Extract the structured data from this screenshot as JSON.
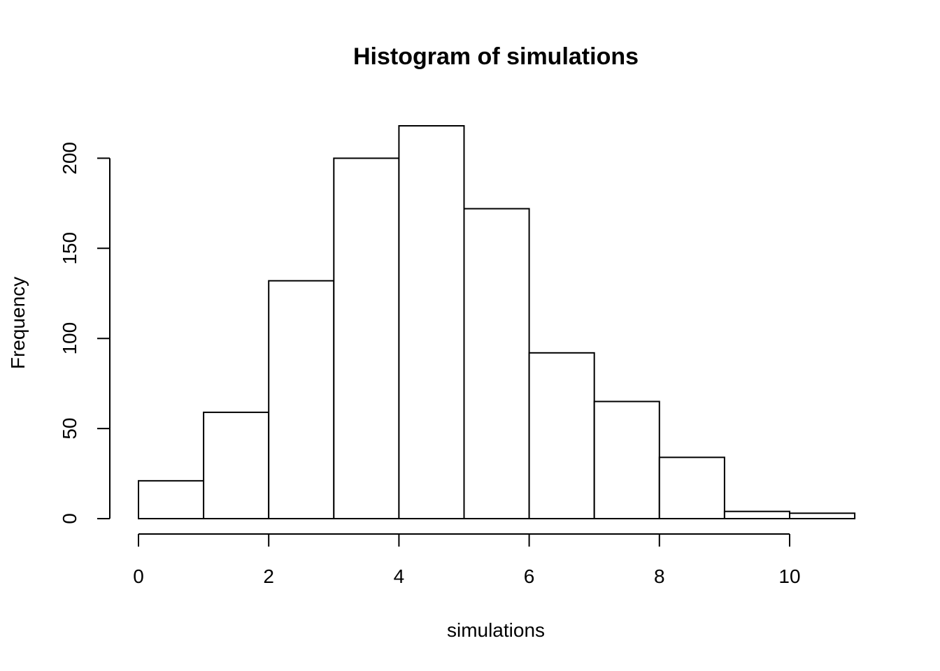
{
  "chart_data": {
    "type": "bar",
    "title": "Histogram of simulations",
    "xlabel": "simulations",
    "ylabel": "Frequency",
    "bins": [
      {
        "x0": 0,
        "x1": 1,
        "count": 21
      },
      {
        "x0": 1,
        "x1": 2,
        "count": 59
      },
      {
        "x0": 2,
        "x1": 3,
        "count": 132
      },
      {
        "x0": 3,
        "x1": 4,
        "count": 200
      },
      {
        "x0": 4,
        "x1": 5,
        "count": 218
      },
      {
        "x0": 5,
        "x1": 6,
        "count": 172
      },
      {
        "x0": 6,
        "x1": 7,
        "count": 92
      },
      {
        "x0": 7,
        "x1": 8,
        "count": 65
      },
      {
        "x0": 8,
        "x1": 9,
        "count": 34
      },
      {
        "x0": 9,
        "x1": 10,
        "count": 4
      },
      {
        "x0": 10,
        "x1": 11,
        "count": 3
      }
    ],
    "xlim": [
      0,
      11
    ],
    "ylim": [
      0,
      218
    ],
    "x_ticks": [
      {
        "value": 0,
        "label": "0"
      },
      {
        "value": 2,
        "label": "2"
      },
      {
        "value": 4,
        "label": "4"
      },
      {
        "value": 6,
        "label": "6"
      },
      {
        "value": 8,
        "label": "8"
      },
      {
        "value": 10,
        "label": "10"
      }
    ],
    "y_ticks": [
      {
        "value": 0,
        "label": "0"
      },
      {
        "value": 50,
        "label": "50"
      },
      {
        "value": 100,
        "label": "100"
      },
      {
        "value": 150,
        "label": "150"
      },
      {
        "value": 200,
        "label": "200"
      }
    ],
    "grid": false,
    "legend": "none",
    "colors": {
      "bar_fill": "#ffffff",
      "bar_stroke": "#000000",
      "axis": "#000000",
      "background": "#ffffff"
    }
  }
}
